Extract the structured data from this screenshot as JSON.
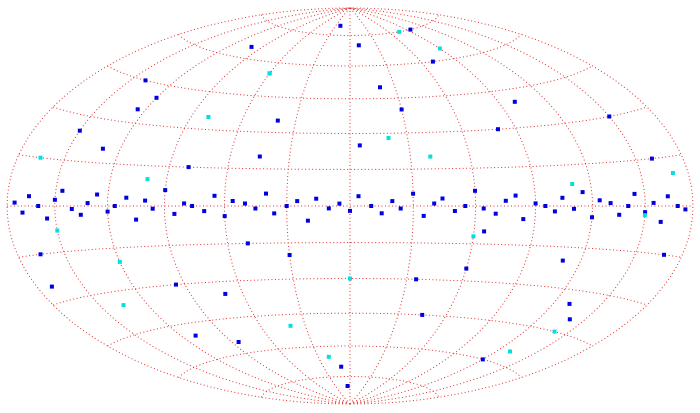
{
  "chart_data": {
    "type": "scatter",
    "projection": "hammer",
    "xlim": [
      -180,
      180
    ],
    "ylim": [
      -90,
      90
    ],
    "grid": true,
    "series": [
      {
        "color": "#0000e0",
        "x": [
          -175,
          -170,
          -166,
          -160,
          -155,
          -150,
          -146,
          -140,
          -135,
          -131,
          -126,
          -120,
          -116,
          -110,
          -105,
          -100,
          -96,
          -90,
          -85,
          -80,
          -76,
          -70,
          -65,
          -60,
          -56,
          -50,
          -45,
          -40,
          -36,
          -30,
          -25,
          -20,
          -16,
          -10,
          -5,
          0,
          4,
          10,
          15,
          20,
          24,
          30,
          35,
          40,
          44,
          50,
          55,
          60,
          64,
          70,
          75,
          80,
          84,
          90,
          95,
          100,
          104,
          110,
          115,
          120,
          124,
          130,
          135,
          140,
          144,
          150,
          155,
          160,
          164,
          170,
          175,
          -150,
          -120,
          -95,
          -60,
          -30,
          10,
          45,
          80,
          120,
          160,
          -165,
          -130,
          -100,
          -70,
          -40,
          -10,
          20,
          60,
          100,
          140,
          -140,
          -110,
          -80,
          -50,
          -20,
          5,
          35,
          70,
          110,
          150,
          -170,
          -125,
          -85,
          -45,
          -5,
          30,
          65,
          95,
          130,
          168
        ],
        "values": [
          1,
          -2,
          3,
          0,
          -4,
          2,
          5,
          -1,
          -3,
          1,
          4,
          -2,
          0,
          3,
          -5,
          2,
          -1,
          6,
          -3,
          1,
          0,
          -2,
          4,
          -4,
          2,
          1,
          -1,
          5,
          -3,
          0,
          2,
          -6,
          3,
          -1,
          1,
          -2,
          4,
          0,
          -3,
          2,
          -1,
          5,
          -4,
          1,
          3,
          -2,
          0,
          6,
          -1,
          -3,
          2,
          4,
          -5,
          1,
          0,
          -2,
          3,
          -1,
          5,
          -4,
          2,
          1,
          -3,
          0,
          4,
          -2,
          1,
          -5,
          3,
          0,
          -1,
          25,
          40,
          -30,
          55,
          -20,
          70,
          -45,
          30,
          -60,
          15,
          -15,
          20,
          65,
          -35,
          35,
          -70,
          50,
          -25,
          40,
          -40,
          45,
          -50,
          15,
          -15,
          80,
          25,
          -30,
          60,
          -20,
          30,
          -25,
          35,
          -55,
          20,
          -80,
          40,
          -10,
          75,
          -35,
          -15
        ]
      },
      {
        "color": "#00e0e0",
        "x": [
          -165,
          -120,
          -80,
          -40,
          0,
          40,
          90,
          140,
          170,
          -150,
          -100,
          -60,
          -20,
          20,
          60,
          110,
          150,
          -135,
          75,
          130
        ],
        "values": [
          15,
          -20,
          35,
          -50,
          -30,
          20,
          65,
          -45,
          10,
          -8,
          10,
          55,
          -65,
          28,
          -12,
          8,
          -3,
          -35,
          75,
          -55
        ]
      }
    ]
  }
}
